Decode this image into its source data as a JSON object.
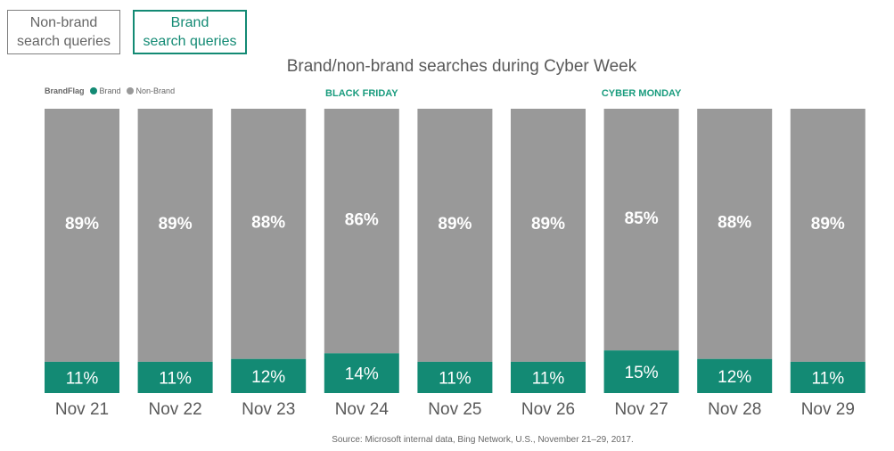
{
  "toggles": {
    "nonbrand": "Non-brand\nsearch queries",
    "brand": "Brand\nsearch queries"
  },
  "colors": {
    "brand": "#138a74",
    "nonbrand": "#999999",
    "annotation": "#1a9c7e"
  },
  "chart_data": {
    "type": "bar",
    "stacked": true,
    "title": "Brand/non-brand searches during Cyber Week",
    "legend": {
      "title": "BrandFlag",
      "placement": "top-left",
      "entries": [
        "Brand",
        "Non-Brand"
      ]
    },
    "categories": [
      "Nov 21",
      "Nov 22",
      "Nov 23",
      "Nov 24",
      "Nov 25",
      "Nov 26",
      "Nov 27",
      "Nov 28",
      "Nov 29"
    ],
    "series": [
      {
        "name": "Brand",
        "values": [
          11,
          11,
          12,
          14,
          11,
          11,
          15,
          12,
          11
        ],
        "labels": [
          "11%",
          "11%",
          "12%",
          "14%",
          "11%",
          "11%",
          "15%",
          "12%",
          "11%"
        ]
      },
      {
        "name": "Non-Brand",
        "values": [
          89,
          89,
          88,
          86,
          89,
          89,
          85,
          88,
          89
        ],
        "labels": [
          "89%",
          "89%",
          "88%",
          "86%",
          "89%",
          "89%",
          "85%",
          "88%",
          "89%"
        ]
      }
    ],
    "ylim": [
      0,
      100
    ],
    "annotations": [
      {
        "category": "Nov 24",
        "text": "BLACK FRIDAY"
      },
      {
        "category": "Nov 27",
        "text": "CYBER MONDAY"
      }
    ],
    "grid": false
  },
  "source": "Source: Microsoft internal data, Bing Network, U.S., November 21–29, 2017."
}
